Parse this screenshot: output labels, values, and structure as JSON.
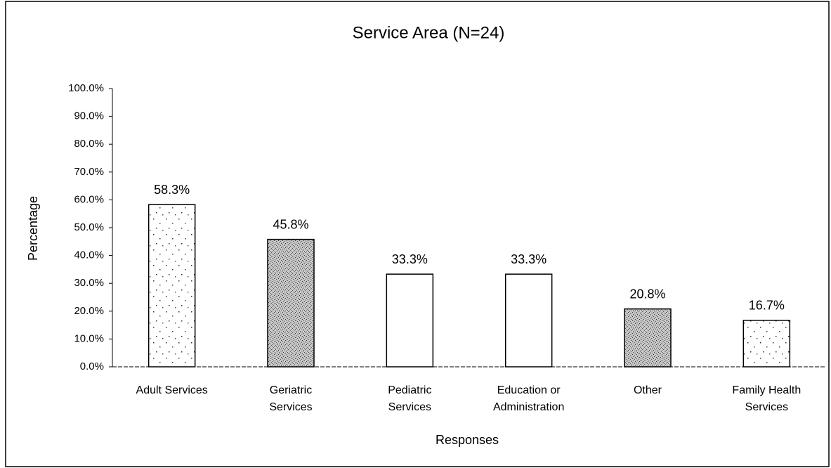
{
  "chart_data": {
    "type": "bar",
    "title": "Service Area (N=24)",
    "x_label": "Responses",
    "y_label": "Percentage",
    "categories": [
      "Adult Services",
      "Geriatric\nServices",
      "Pediatric\nServices",
      "Education or\nAdministration",
      "Other",
      "Family Health\nServices"
    ],
    "values": [
      58.3,
      45.8,
      33.3,
      33.3,
      20.8,
      16.7
    ],
    "value_labels": [
      "58.3%",
      "45.8%",
      "33.3%",
      "33.3%",
      "20.8%",
      "16.7%"
    ],
    "bar_fills": [
      "dotted",
      "stippled",
      "none",
      "none",
      "stippled",
      "dotted"
    ],
    "color": "#000000",
    "ylim": [
      0,
      100
    ],
    "yticks": [
      {
        "value": 0,
        "label": "0.0%"
      },
      {
        "value": 10,
        "label": "10.0%"
      },
      {
        "value": 20,
        "label": "20.0%"
      },
      {
        "value": 30,
        "label": "30.0%"
      },
      {
        "value": 40,
        "label": "40.0%"
      },
      {
        "value": 50,
        "label": "50.0%"
      },
      {
        "value": 60,
        "label": "60.0%"
      },
      {
        "value": 70,
        "label": "70.0%"
      },
      {
        "value": 80,
        "label": "80.0%"
      },
      {
        "value": 90,
        "label": "90.0%"
      },
      {
        "value": 100,
        "label": "100.0%"
      }
    ],
    "grid": false
  }
}
